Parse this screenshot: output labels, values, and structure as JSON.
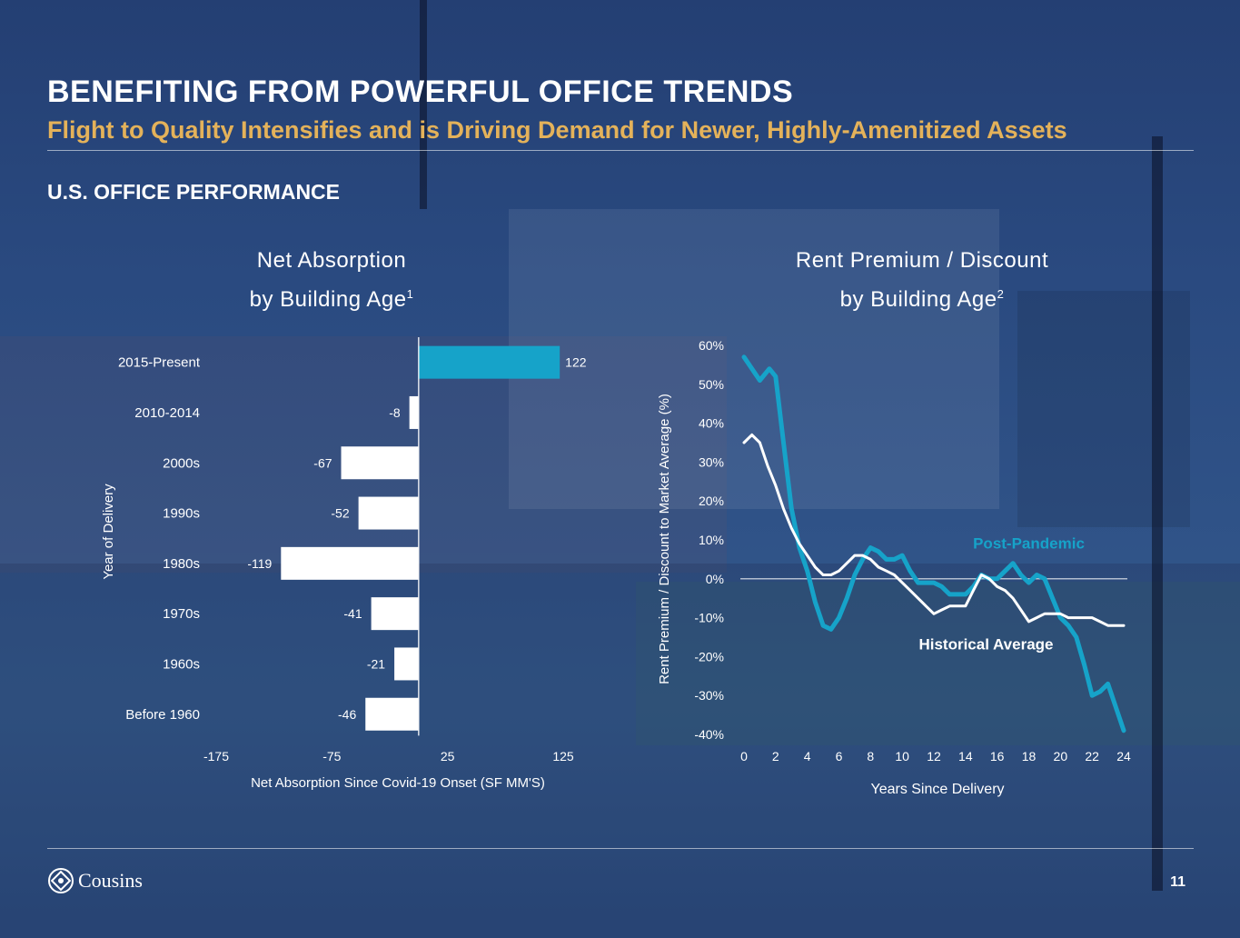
{
  "header": {
    "title": "BENEFITING FROM POWERFUL OFFICE TRENDS",
    "subtitle": "Flight to Quality Intensifies and is Driving Demand for Newer, Highly-Amenitized Assets",
    "section": "U.S. OFFICE PERFORMANCE"
  },
  "colors": {
    "accent": "#16a3c9",
    "gold": "#e4b25a",
    "bar_default": "#ffffff",
    "background": "#2a4a80"
  },
  "chart_data": [
    {
      "type": "bar",
      "orientation": "horizontal",
      "title_line1": "Net Absorption",
      "title_line2": "by Building Age",
      "title_note": "1",
      "categories": [
        "2015-Present",
        "2010-2014",
        "2000s",
        "1990s",
        "1980s",
        "1970s",
        "1960s",
        "Before 1960"
      ],
      "values": [
        122,
        -8,
        -67,
        -52,
        -119,
        -41,
        -21,
        -46
      ],
      "value_labels": [
        "122",
        "-8",
        "-67",
        "-52",
        "-119",
        "-41",
        "-21",
        "-46"
      ],
      "highlight_index": 0,
      "xlabel": "Net Absorption Since Covid-19 Onset (SF MM'S)",
      "ylabel": "Year of Delivery",
      "xlim": [
        -175,
        125
      ],
      "xticks": [
        -175,
        -75,
        25,
        125
      ],
      "xtick_labels": [
        "-175",
        "-75",
        "25",
        "125"
      ],
      "grid": false,
      "legend": "none"
    },
    {
      "type": "line",
      "title_line1": "Rent Premium / Discount",
      "title_line2": "by Building Age",
      "title_note": "2",
      "xlabel": "Years Since Delivery",
      "ylabel": "Rent Premium / Discount to Market Average (%)",
      "xlim": [
        0,
        24
      ],
      "ylim": [
        -40,
        60
      ],
      "xticks": [
        0,
        2,
        4,
        6,
        8,
        10,
        12,
        14,
        16,
        18,
        20,
        22,
        24
      ],
      "xtick_labels": [
        "0",
        "2",
        "4",
        "6",
        "8",
        "10",
        "12",
        "14",
        "16",
        "18",
        "20",
        "22",
        "24"
      ],
      "yticks": [
        -40,
        -30,
        -20,
        -10,
        0,
        10,
        20,
        30,
        40,
        50,
        60
      ],
      "ytick_labels": [
        "-40%",
        "-30%",
        "-20%",
        "-10%",
        "0%",
        "10%",
        "20%",
        "30%",
        "40%",
        "50%",
        "60%"
      ],
      "zero_line": true,
      "grid": false,
      "legend": "inline labels",
      "series": [
        {
          "name": "Post-Pandemic",
          "color": "#16a3c9",
          "x": [
            0,
            1,
            1.6,
            2,
            2.5,
            3,
            3.5,
            4,
            4.5,
            5,
            5.5,
            6,
            6.5,
            7,
            7.5,
            8,
            8.5,
            9,
            9.5,
            10,
            10.5,
            11,
            11.5,
            12,
            12.5,
            13,
            13.5,
            14,
            14.5,
            15,
            15.5,
            16,
            16.5,
            17,
            17.5,
            18,
            18.5,
            19,
            19.5,
            20,
            20.5,
            21,
            21.5,
            22,
            22.5,
            23,
            23.5,
            24
          ],
          "y": [
            57,
            51,
            54,
            52,
            35,
            18,
            8,
            2,
            -6,
            -12,
            -13,
            -10,
            -5,
            1,
            5,
            8,
            7,
            5,
            5,
            6,
            2,
            -1,
            -1,
            -1,
            -2,
            -4,
            -4,
            -4,
            -2,
            1,
            0,
            0,
            2,
            4,
            1,
            -1,
            1,
            0,
            -5,
            -10,
            -12,
            -15,
            -22,
            -30,
            -29,
            -27,
            -33,
            -39
          ]
        },
        {
          "name": "Historical Average",
          "color": "#ffffff",
          "x": [
            0,
            0.5,
            1,
            1.5,
            2,
            2.5,
            3,
            3.5,
            4,
            4.5,
            5,
            5.5,
            6,
            6.5,
            7,
            7.5,
            8,
            8.5,
            9,
            9.5,
            10,
            10.5,
            11,
            11.5,
            12,
            12.5,
            13,
            13.5,
            14,
            14.5,
            15,
            15.5,
            16,
            16.5,
            17,
            17.5,
            18,
            18.5,
            19,
            19.5,
            20,
            20.5,
            21,
            21.5,
            22,
            22.5,
            23,
            23.5,
            24
          ],
          "y": [
            35,
            37,
            35,
            29,
            24,
            18,
            13,
            9,
            6,
            3,
            1,
            1,
            2,
            4,
            6,
            6,
            5,
            3,
            2,
            1,
            -1,
            -3,
            -5,
            -7,
            -9,
            -8,
            -7,
            -7,
            -7,
            -3,
            1,
            0,
            -2,
            -3,
            -5,
            -8,
            -11,
            -10,
            -9,
            -9,
            -9,
            -10,
            -10,
            -10,
            -10,
            -11,
            -12,
            -12,
            -12
          ]
        }
      ]
    }
  ],
  "footer": {
    "brand": "Cousins",
    "page_number": "11"
  }
}
